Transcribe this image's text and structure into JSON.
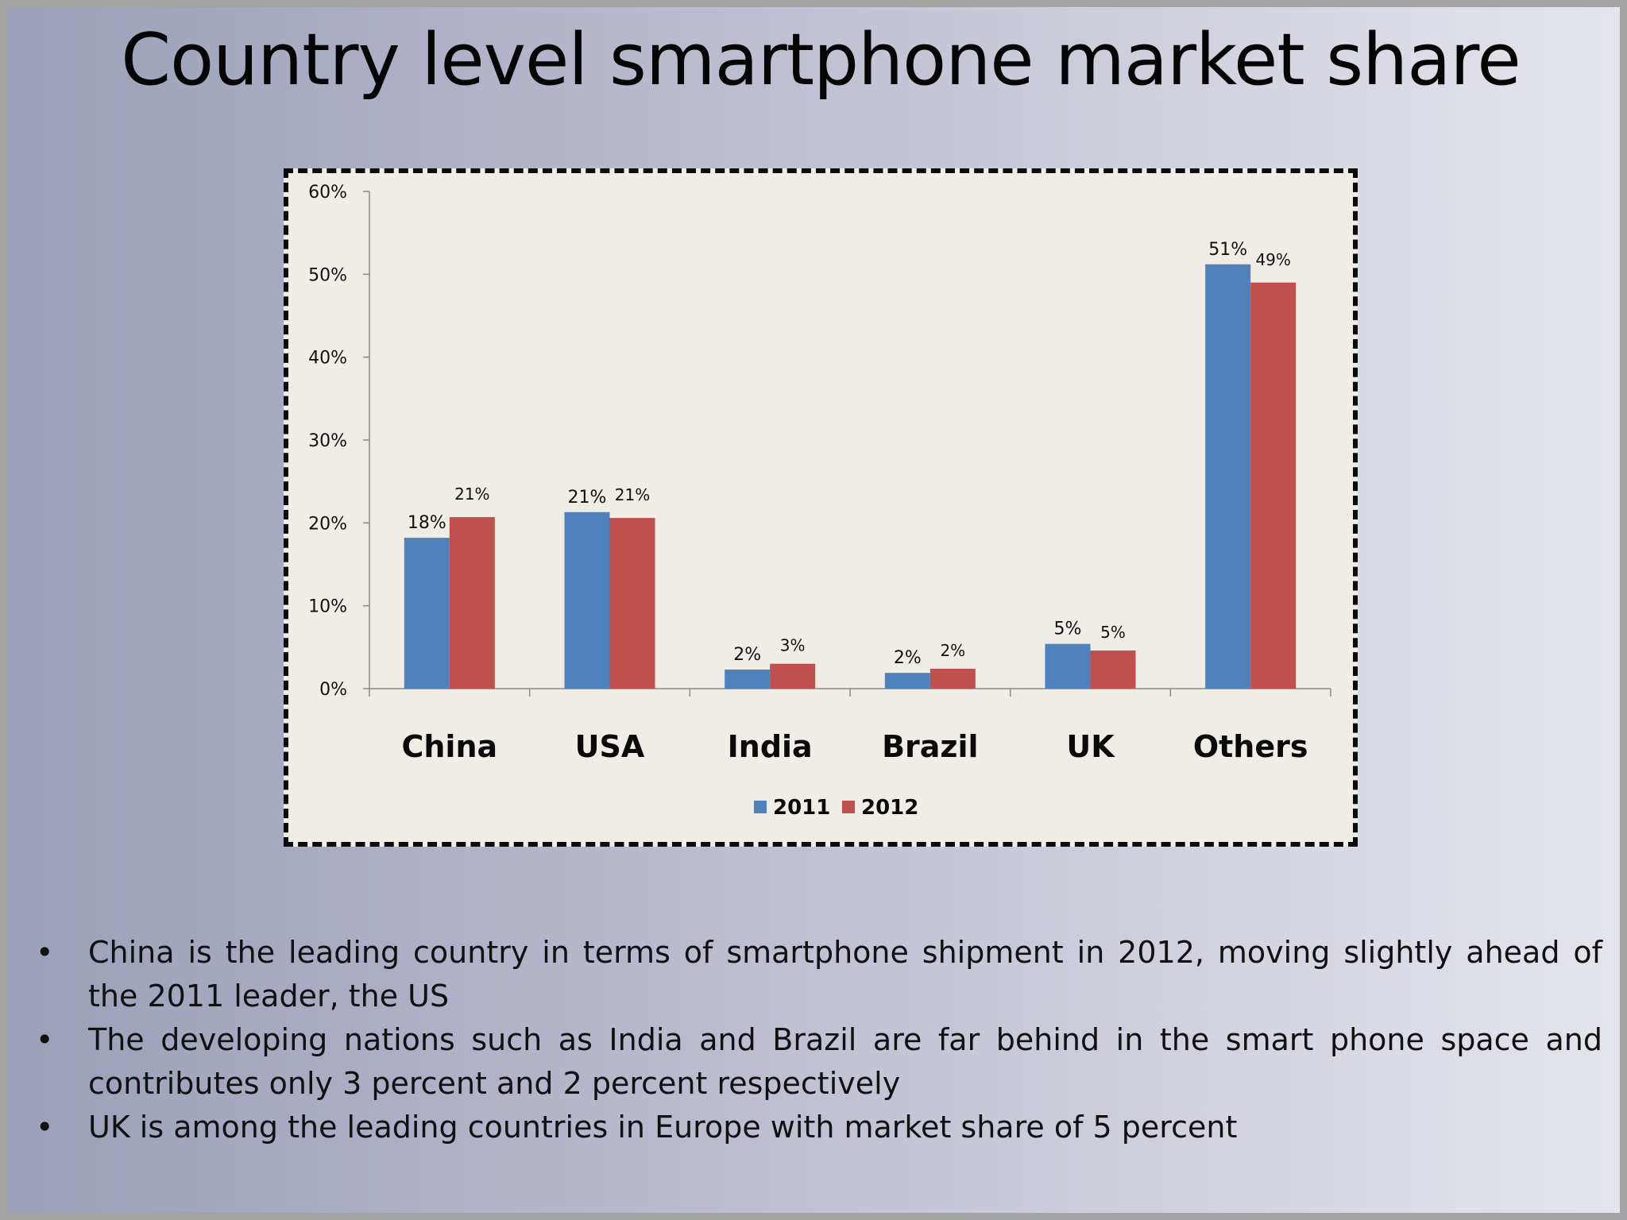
{
  "slide": {
    "title": "Country level smartphone market share",
    "bullet_symbol": "•",
    "bullets": [
      "China is the leading country in terms of smartphone shipment in 2012, moving slightly ahead of the 2011 leader, the US",
      "The developing nations such as India and Brazil are far behind in the smart phone space and contributes only 3 percent and 2 percent respectively",
      "UK is among the leading countries in Europe with market share of 5 percent"
    ]
  },
  "chart_data": {
    "type": "bar",
    "title": "",
    "xlabel": "",
    "ylabel": "",
    "ylim": [
      0,
      60
    ],
    "y_ticks": [
      "0%",
      "10%",
      "20%",
      "30%",
      "40%",
      "50%",
      "60%"
    ],
    "categories": [
      "China",
      "USA",
      "India",
      "Brazil",
      "UK",
      "Others"
    ],
    "series": [
      {
        "name": "2011",
        "color": "#4f81bd",
        "values": [
          18.2,
          21.3,
          2.3,
          1.9,
          5.4,
          51.2
        ],
        "labels": [
          "18%",
          "21%",
          "2%",
          "2%",
          "5%",
          "51%"
        ]
      },
      {
        "name": "2012",
        "color": "#c0504d",
        "values": [
          20.7,
          20.6,
          3.0,
          2.4,
          4.6,
          49.0
        ],
        "labels": [
          "21%",
          "21%",
          "3%",
          "2%",
          "5%",
          "49%"
        ]
      }
    ],
    "grid": false,
    "legend": "bottom"
  }
}
